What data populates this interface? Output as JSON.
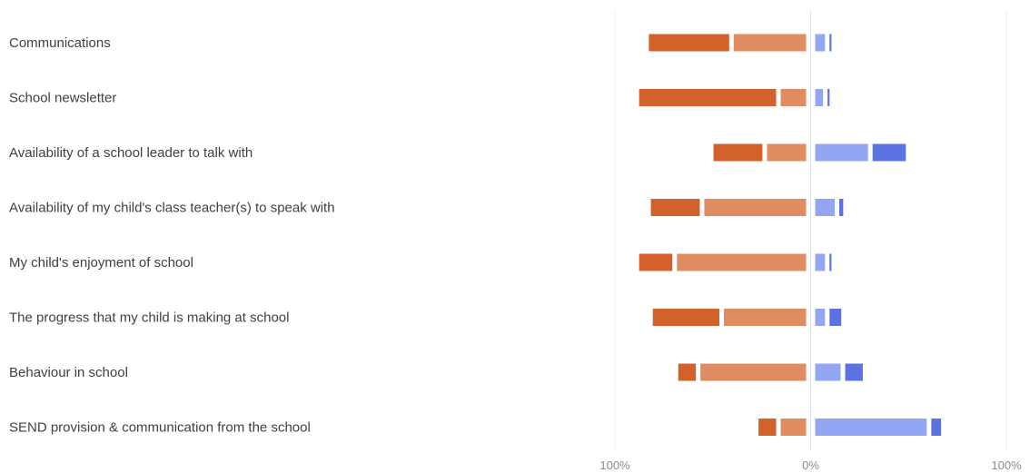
{
  "chart_data": {
    "type": "bar",
    "orientation": "horizontal",
    "stacking": "diverging",
    "categories": [
      "Communications",
      "School newsletter",
      "Availability of a school leader to talk with",
      "Availability of my child's class teacher(s) to speak with",
      "My child's enjoyment of school",
      "The progress that my child is making at school",
      "Behaviour in school",
      "SEND provision & communication from the school"
    ],
    "series": [
      {
        "side": "negative",
        "color": "#d2622a",
        "values": [
          41,
          70,
          25,
          25,
          17,
          34,
          9,
          9
        ]
      },
      {
        "side": "negative",
        "color": "#e08c63",
        "values": [
          37,
          13,
          20,
          52,
          66,
          42,
          54,
          13
        ]
      },
      {
        "side": "positive",
        "color": "#93a6f4",
        "values": [
          5,
          4,
          27,
          10,
          5,
          5,
          13,
          57
        ]
      },
      {
        "side": "positive",
        "color": "#5b72e2",
        "values": [
          1,
          1,
          17,
          2,
          1,
          6,
          9,
          5
        ]
      }
    ],
    "xlim": [
      -100,
      100
    ],
    "x_ticks": [
      "100%",
      "0%",
      "100%"
    ],
    "grid": true,
    "legend": "none"
  }
}
